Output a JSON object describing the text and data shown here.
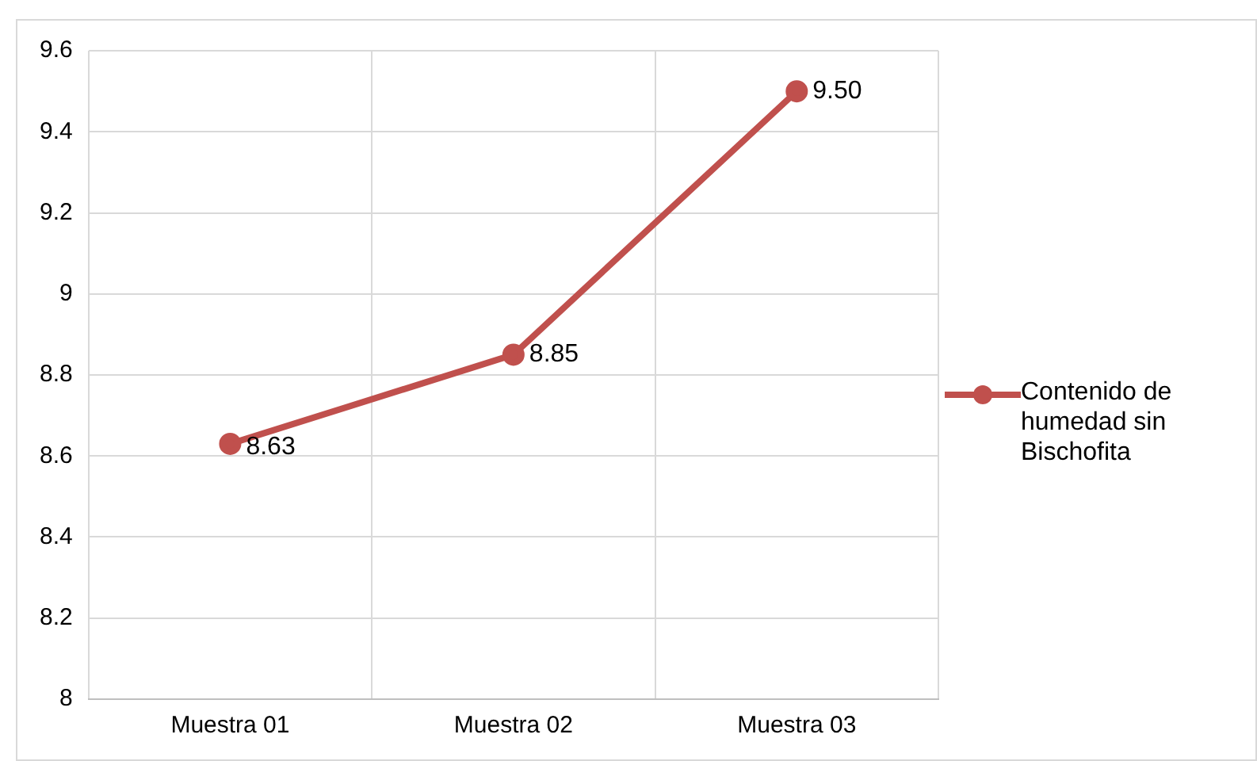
{
  "chart_data": {
    "type": "line",
    "categories": [
      "Muestra 01",
      "Muestra 02",
      "Muestra 03"
    ],
    "series": [
      {
        "name": "Contenido de humedad sin Bischofita",
        "color": "#c0504d",
        "values": [
          8.63,
          8.85,
          9.5
        ],
        "value_labels": [
          "8.63",
          "8.85",
          "9.50"
        ]
      }
    ],
    "ylim": [
      8,
      9.6
    ],
    "yticks": [
      8,
      8.2,
      8.4,
      8.6,
      8.8,
      9,
      9.2,
      9.4,
      9.6
    ],
    "grid": true,
    "legend": "right",
    "marker": "circle",
    "line_style": "solid"
  }
}
